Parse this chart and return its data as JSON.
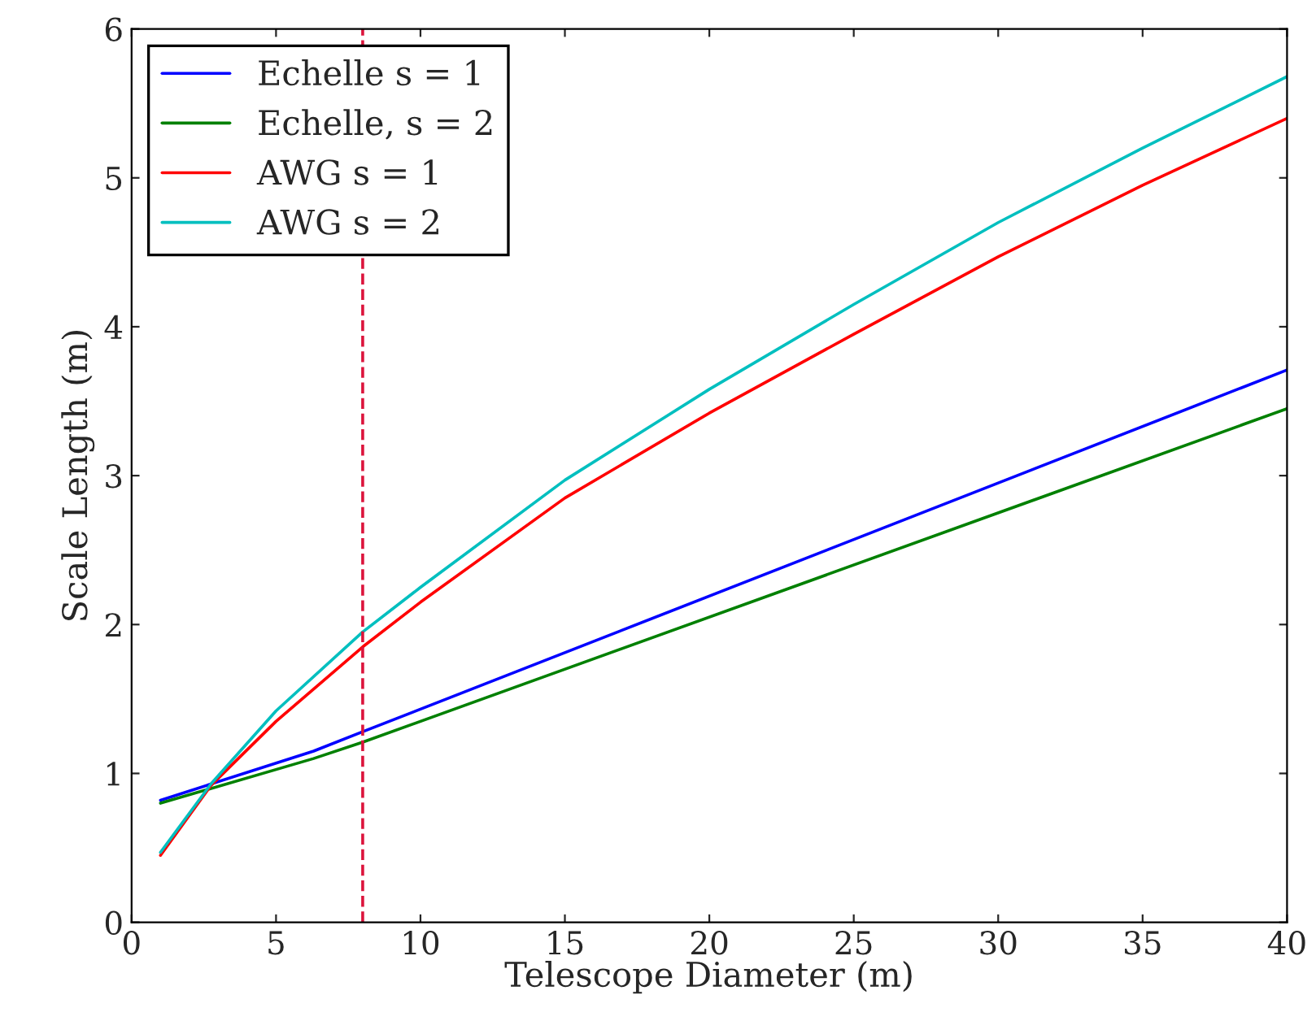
{
  "chart_data": {
    "type": "line",
    "xlabel": "Telescope Diameter (m)",
    "ylabel": "Scale Length (m)",
    "xlim": [
      0,
      40
    ],
    "ylim": [
      0,
      6
    ],
    "xticks": [
      0,
      5,
      10,
      15,
      20,
      25,
      30,
      35,
      40
    ],
    "yticks": [
      0,
      1,
      2,
      3,
      4,
      5,
      6
    ],
    "grid": false,
    "legend": "top left",
    "marker": "none",
    "line_style": "solid",
    "series": [
      {
        "name": "Echelle s = 1",
        "color": "#0000ff",
        "x": [
          1,
          6.3,
          8,
          40
        ],
        "values": [
          0.82,
          1.15,
          1.28,
          3.71
        ]
      },
      {
        "name": "Echelle, s = 2",
        "color": "#008000",
        "x": [
          1,
          6.3,
          8,
          40
        ],
        "values": [
          0.8,
          1.1,
          1.21,
          3.45
        ]
      },
      {
        "name": "AWG s = 1",
        "color": "#ff0000",
        "x": [
          1,
          2.75,
          5,
          8,
          10,
          15,
          20,
          25,
          30,
          35,
          40
        ],
        "values": [
          0.45,
          0.92,
          1.35,
          1.85,
          2.15,
          2.85,
          3.42,
          3.95,
          4.47,
          4.95,
          5.4
        ]
      },
      {
        "name": "AWG s = 2",
        "color": "#00bfbf",
        "x": [
          1,
          2.75,
          5,
          8,
          10,
          15,
          20,
          25,
          30,
          35,
          40
        ],
        "values": [
          0.47,
          0.93,
          1.42,
          1.95,
          2.25,
          2.97,
          3.58,
          4.15,
          4.7,
          5.2,
          5.68
        ]
      }
    ],
    "ref_lines": [
      {
        "axis": "x",
        "value": 8,
        "color": "#dc143c",
        "line_style": "dashed"
      }
    ]
  }
}
